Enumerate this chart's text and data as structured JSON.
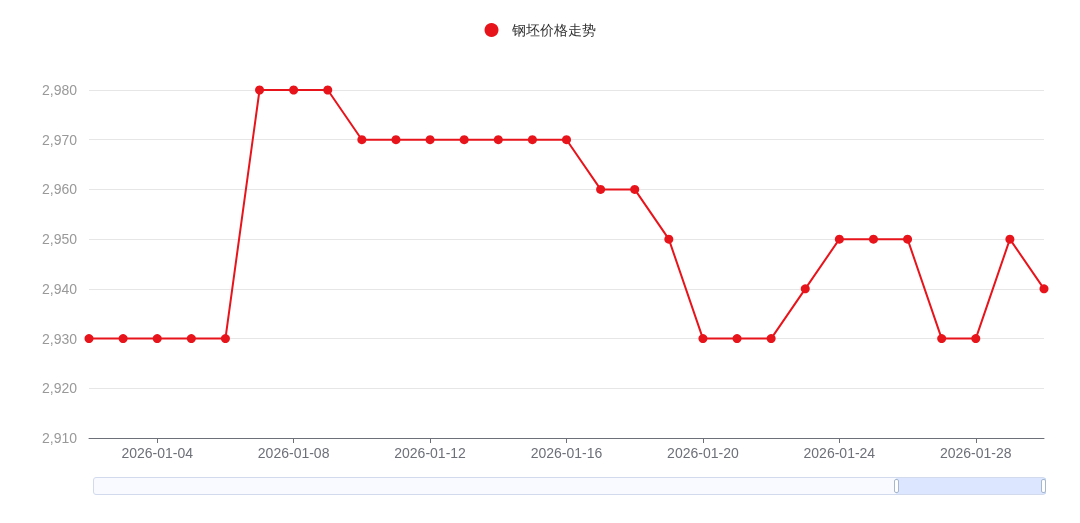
{
  "chart_data": {
    "type": "line",
    "legend": "top",
    "grid": "y",
    "marker": "circle",
    "line_style": "solid",
    "x": [
      "2026-01-02",
      "2026-01-03",
      "2026-01-04",
      "2026-01-05",
      "2026-01-06",
      "2026-01-07",
      "2026-01-08",
      "2026-01-09",
      "2026-01-10",
      "2026-01-11",
      "2026-01-12",
      "2026-01-13",
      "2026-01-14",
      "2026-01-15",
      "2026-01-16",
      "2026-01-17",
      "2026-01-18",
      "2026-01-19",
      "2026-01-20",
      "2026-01-21",
      "2026-01-22",
      "2026-01-23",
      "2026-01-24",
      "2026-01-25",
      "2026-01-26",
      "2026-01-27",
      "2026-01-28",
      "2026-01-29",
      "2026-01-30"
    ],
    "series": [
      {
        "name": "钢坯价格走势",
        "color": "#e8141b",
        "values": [
          2930,
          2930,
          2930,
          2930,
          2930,
          2980,
          2980,
          2980,
          2970,
          2970,
          2970,
          2970,
          2970,
          2970,
          2970,
          2960,
          2960,
          2950,
          2930,
          2930,
          2930,
          2940,
          2950,
          2950,
          2950,
          2930,
          2930,
          2950,
          2940
        ]
      }
    ],
    "xlim": [
      "2026-01-02",
      "2026-01-30"
    ],
    "xticks": [
      "2026-01-04",
      "2026-01-08",
      "2026-01-12",
      "2026-01-16",
      "2026-01-20",
      "2026-01-24",
      "2026-01-28"
    ],
    "ylim": [
      2910,
      2980
    ],
    "yticks": [
      {
        "value": 2910,
        "label": "2,910"
      },
      {
        "value": 2920,
        "label": "2,920"
      },
      {
        "value": 2930,
        "label": "2,930"
      },
      {
        "value": 2940,
        "label": "2,940"
      },
      {
        "value": 2950,
        "label": "2,950"
      },
      {
        "value": 2960,
        "label": "2,960"
      },
      {
        "value": 2970,
        "label": "2,970"
      },
      {
        "value": 2980,
        "label": "2,980"
      }
    ]
  }
}
